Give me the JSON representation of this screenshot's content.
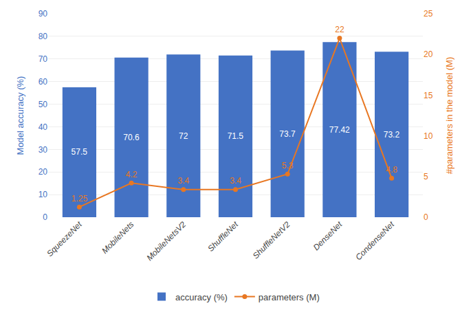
{
  "chart_data": {
    "type": "bar",
    "categories": [
      "SqueezeNet",
      "MobileNets",
      "MobileNetsV2",
      "ShuffleNet",
      "ShuffleNetV2",
      "DenseNet",
      "CondenseNet"
    ],
    "series": [
      {
        "name": "accuracy (%)",
        "type": "bar",
        "color": "#4472c4",
        "values": [
          57.5,
          70.6,
          72,
          71.5,
          73.7,
          77.42,
          73.2
        ],
        "data_labels": true
      },
      {
        "name": "parameters (M)",
        "type": "line",
        "axis": "y2",
        "color": "#e87722",
        "marker": "circle",
        "line_style": "solid",
        "values": [
          1.25,
          4.2,
          3.4,
          3.4,
          5.3,
          22,
          4.8
        ],
        "data_labels": true
      }
    ],
    "ylabel": "Model accuracy (%)",
    "y2label": "#parameters in the model (M)",
    "ylim": [
      0,
      90
    ],
    "yticks": [
      0,
      10,
      20,
      30,
      40,
      50,
      60,
      70,
      80,
      90
    ],
    "y2lim": [
      0,
      25
    ],
    "y2ticks": [
      0,
      5,
      10,
      15,
      20,
      25
    ],
    "grid": true,
    "legend": "bottom"
  }
}
